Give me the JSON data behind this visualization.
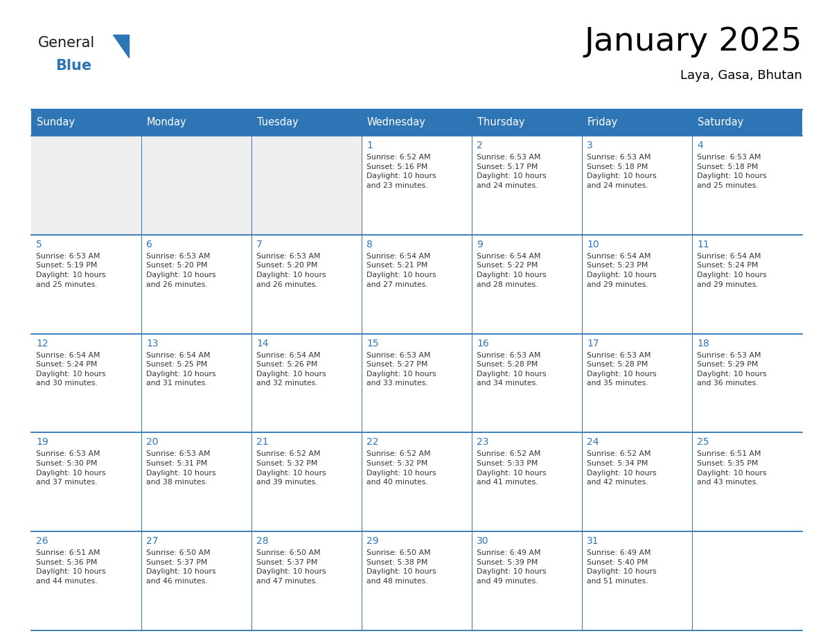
{
  "title": "January 2025",
  "subtitle": "Laya, Gasa, Bhutan",
  "header_bg": "#2E75B6",
  "header_text_color": "#FFFFFF",
  "cell_bg_white": "#FFFFFF",
  "cell_bg_gray": "#EFEFEF",
  "day_number_color": "#2E75B6",
  "text_color": "#333333",
  "line_color": "#2E75B6",
  "days_of_week": [
    "Sunday",
    "Monday",
    "Tuesday",
    "Wednesday",
    "Thursday",
    "Friday",
    "Saturday"
  ],
  "weeks": [
    [
      {
        "day": "",
        "info": ""
      },
      {
        "day": "",
        "info": ""
      },
      {
        "day": "",
        "info": ""
      },
      {
        "day": "1",
        "info": "Sunrise: 6:52 AM\nSunset: 5:16 PM\nDaylight: 10 hours\nand 23 minutes."
      },
      {
        "day": "2",
        "info": "Sunrise: 6:53 AM\nSunset: 5:17 PM\nDaylight: 10 hours\nand 24 minutes."
      },
      {
        "day": "3",
        "info": "Sunrise: 6:53 AM\nSunset: 5:18 PM\nDaylight: 10 hours\nand 24 minutes."
      },
      {
        "day": "4",
        "info": "Sunrise: 6:53 AM\nSunset: 5:18 PM\nDaylight: 10 hours\nand 25 minutes."
      }
    ],
    [
      {
        "day": "5",
        "info": "Sunrise: 6:53 AM\nSunset: 5:19 PM\nDaylight: 10 hours\nand 25 minutes."
      },
      {
        "day": "6",
        "info": "Sunrise: 6:53 AM\nSunset: 5:20 PM\nDaylight: 10 hours\nand 26 minutes."
      },
      {
        "day": "7",
        "info": "Sunrise: 6:53 AM\nSunset: 5:20 PM\nDaylight: 10 hours\nand 26 minutes."
      },
      {
        "day": "8",
        "info": "Sunrise: 6:54 AM\nSunset: 5:21 PM\nDaylight: 10 hours\nand 27 minutes."
      },
      {
        "day": "9",
        "info": "Sunrise: 6:54 AM\nSunset: 5:22 PM\nDaylight: 10 hours\nand 28 minutes."
      },
      {
        "day": "10",
        "info": "Sunrise: 6:54 AM\nSunset: 5:23 PM\nDaylight: 10 hours\nand 29 minutes."
      },
      {
        "day": "11",
        "info": "Sunrise: 6:54 AM\nSunset: 5:24 PM\nDaylight: 10 hours\nand 29 minutes."
      }
    ],
    [
      {
        "day": "12",
        "info": "Sunrise: 6:54 AM\nSunset: 5:24 PM\nDaylight: 10 hours\nand 30 minutes."
      },
      {
        "day": "13",
        "info": "Sunrise: 6:54 AM\nSunset: 5:25 PM\nDaylight: 10 hours\nand 31 minutes."
      },
      {
        "day": "14",
        "info": "Sunrise: 6:54 AM\nSunset: 5:26 PM\nDaylight: 10 hours\nand 32 minutes."
      },
      {
        "day": "15",
        "info": "Sunrise: 6:53 AM\nSunset: 5:27 PM\nDaylight: 10 hours\nand 33 minutes."
      },
      {
        "day": "16",
        "info": "Sunrise: 6:53 AM\nSunset: 5:28 PM\nDaylight: 10 hours\nand 34 minutes."
      },
      {
        "day": "17",
        "info": "Sunrise: 6:53 AM\nSunset: 5:28 PM\nDaylight: 10 hours\nand 35 minutes."
      },
      {
        "day": "18",
        "info": "Sunrise: 6:53 AM\nSunset: 5:29 PM\nDaylight: 10 hours\nand 36 minutes."
      }
    ],
    [
      {
        "day": "19",
        "info": "Sunrise: 6:53 AM\nSunset: 5:30 PM\nDaylight: 10 hours\nand 37 minutes."
      },
      {
        "day": "20",
        "info": "Sunrise: 6:53 AM\nSunset: 5:31 PM\nDaylight: 10 hours\nand 38 minutes."
      },
      {
        "day": "21",
        "info": "Sunrise: 6:52 AM\nSunset: 5:32 PM\nDaylight: 10 hours\nand 39 minutes."
      },
      {
        "day": "22",
        "info": "Sunrise: 6:52 AM\nSunset: 5:32 PM\nDaylight: 10 hours\nand 40 minutes."
      },
      {
        "day": "23",
        "info": "Sunrise: 6:52 AM\nSunset: 5:33 PM\nDaylight: 10 hours\nand 41 minutes."
      },
      {
        "day": "24",
        "info": "Sunrise: 6:52 AM\nSunset: 5:34 PM\nDaylight: 10 hours\nand 42 minutes."
      },
      {
        "day": "25",
        "info": "Sunrise: 6:51 AM\nSunset: 5:35 PM\nDaylight: 10 hours\nand 43 minutes."
      }
    ],
    [
      {
        "day": "26",
        "info": "Sunrise: 6:51 AM\nSunset: 5:36 PM\nDaylight: 10 hours\nand 44 minutes."
      },
      {
        "day": "27",
        "info": "Sunrise: 6:50 AM\nSunset: 5:37 PM\nDaylight: 10 hours\nand 46 minutes."
      },
      {
        "day": "28",
        "info": "Sunrise: 6:50 AM\nSunset: 5:37 PM\nDaylight: 10 hours\nand 47 minutes."
      },
      {
        "day": "29",
        "info": "Sunrise: 6:50 AM\nSunset: 5:38 PM\nDaylight: 10 hours\nand 48 minutes."
      },
      {
        "day": "30",
        "info": "Sunrise: 6:49 AM\nSunset: 5:39 PM\nDaylight: 10 hours\nand 49 minutes."
      },
      {
        "day": "31",
        "info": "Sunrise: 6:49 AM\nSunset: 5:40 PM\nDaylight: 10 hours\nand 51 minutes."
      },
      {
        "day": "",
        "info": ""
      }
    ]
  ],
  "logo_general_color": "#1a1a1a",
  "logo_blue_color": "#2E75B6",
  "header_font_size": 10.5,
  "day_number_font_size": 10,
  "info_font_size": 7.8,
  "title_font_size": 34,
  "subtitle_font_size": 13
}
